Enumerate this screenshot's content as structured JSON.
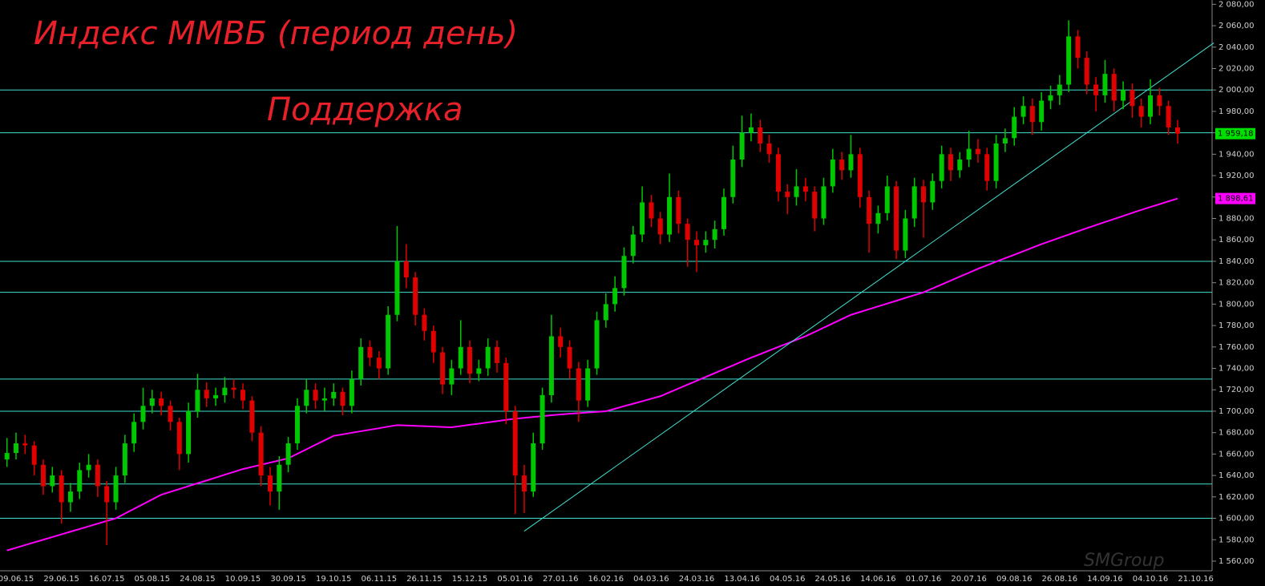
{
  "chart_data": {
    "type": "candlestick",
    "title": "Индекс ММВБ (период день)",
    "annotation": "Поддержка",
    "watermark": "SMGroup",
    "up_color": "#00c800",
    "down_color": "#e00000",
    "ylim": [
      1551,
      2084
    ],
    "yticks": [
      {
        "value": 1560,
        "label": "1 560,00"
      },
      {
        "value": 1580,
        "label": "1 580,00"
      },
      {
        "value": 1600,
        "label": "1 600,00"
      },
      {
        "value": 1620,
        "label": "1 620,00"
      },
      {
        "value": 1640,
        "label": "1 640,00"
      },
      {
        "value": 1660,
        "label": "1 660,00"
      },
      {
        "value": 1680,
        "label": "1 680,00"
      },
      {
        "value": 1700,
        "label": "1 700,00"
      },
      {
        "value": 1720,
        "label": "1 720,00"
      },
      {
        "value": 1740,
        "label": "1 740,00"
      },
      {
        "value": 1760,
        "label": "1 760,00"
      },
      {
        "value": 1780,
        "label": "1 780,00"
      },
      {
        "value": 1800,
        "label": "1 800,00"
      },
      {
        "value": 1820,
        "label": "1 820,00"
      },
      {
        "value": 1840,
        "label": "1 840,00"
      },
      {
        "value": 1860,
        "label": "1 860,00"
      },
      {
        "value": 1880,
        "label": "1 880,00"
      },
      {
        "value": 1900,
        "label": "1 900,00"
      },
      {
        "value": 1920,
        "label": "1 920,00"
      },
      {
        "value": 1940,
        "label": "1 940,00"
      },
      {
        "value": 1960,
        "label": "1 960,00"
      },
      {
        "value": 1980,
        "label": "1 980,00"
      },
      {
        "value": 2000,
        "label": "2 000,00"
      },
      {
        "value": 2020,
        "label": "2 020,00"
      },
      {
        "value": 2040,
        "label": "2 040,00"
      },
      {
        "value": 2060,
        "label": "2 060,00"
      },
      {
        "value": 2080,
        "label": "2 080,00"
      }
    ],
    "categories": [
      null,
      "09.06.15",
      null,
      null,
      null,
      null,
      "29.06.15",
      null,
      null,
      null,
      null,
      "16.07.15",
      null,
      null,
      null,
      null,
      "05.08.15",
      null,
      null,
      null,
      null,
      "24.08.15",
      null,
      null,
      null,
      null,
      "10.09.15",
      null,
      null,
      null,
      null,
      "30.09.15",
      null,
      null,
      null,
      null,
      "19.10.15",
      null,
      null,
      null,
      null,
      "06.11.15",
      null,
      null,
      null,
      null,
      "26.11.15",
      null,
      null,
      null,
      null,
      "15.12.15",
      null,
      null,
      null,
      null,
      "05.01.16",
      null,
      null,
      null,
      null,
      "27.01.16",
      null,
      null,
      null,
      null,
      "16.02.16",
      null,
      null,
      null,
      null,
      "04.03.16",
      null,
      null,
      null,
      null,
      "24.03.16",
      null,
      null,
      null,
      null,
      "13.04.16",
      null,
      null,
      null,
      null,
      "04.05.16",
      null,
      null,
      null,
      null,
      "24.05.16",
      null,
      null,
      null,
      null,
      "14.06.16",
      null,
      null,
      null,
      null,
      "01.07.16",
      null,
      null,
      null,
      null,
      "20.07.16",
      null,
      null,
      null,
      null,
      "09.08.16",
      null,
      null,
      null,
      null,
      "26.08.16",
      null,
      null,
      null,
      null,
      "14.09.16",
      null,
      null,
      null,
      null,
      "04.10.16",
      null,
      null,
      null,
      null,
      "21.10.16",
      null,
      null
    ],
    "open": [
      1655,
      1661,
      1670,
      1668,
      1650,
      1630,
      1640,
      1615,
      1625,
      1645,
      1650,
      1630,
      1615,
      1640,
      1670,
      1690,
      1705,
      1712,
      1705,
      1690,
      1660,
      1700,
      1720,
      1712,
      1715,
      1722,
      1720,
      1710,
      1680,
      1640,
      1625,
      1650,
      1670,
      1705,
      1720,
      1710,
      1712,
      1718,
      1705,
      1730,
      1760,
      1750,
      1740,
      1790,
      1840,
      1825,
      1790,
      1775,
      1755,
      1725,
      1740,
      1760,
      1735,
      1740,
      1760,
      1745,
      1700,
      1640,
      1625,
      1670,
      1715,
      1770,
      1760,
      1740,
      1710,
      1740,
      1785,
      1800,
      1815,
      1845,
      1865,
      1895,
      1880,
      1865,
      1900,
      1875,
      1860,
      1855,
      1860,
      1870,
      1900,
      1935,
      1960,
      1965,
      1950,
      1940,
      1905,
      1900,
      1910,
      1905,
      1880,
      1910,
      1935,
      1925,
      1940,
      1900,
      1875,
      1885,
      1910,
      1850,
      1880,
      1910,
      1895,
      1915,
      1940,
      1925,
      1935,
      1945,
      1940,
      1915,
      1950,
      1955,
      1975,
      1985,
      1970,
      1990,
      1995,
      2005,
      2050,
      2030,
      2005,
      1995,
      2015,
      1990,
      2000,
      1985,
      1975,
      1995,
      1985,
      1965,
      null,
      null,
      null,
      null
    ],
    "high": [
      1675,
      1680,
      1678,
      1672,
      1655,
      1648,
      1645,
      1633,
      1652,
      1660,
      1655,
      1635,
      1648,
      1678,
      1698,
      1722,
      1720,
      1718,
      1710,
      1694,
      1708,
      1735,
      1727,
      1722,
      1732,
      1730,
      1726,
      1714,
      1686,
      1648,
      1658,
      1676,
      1712,
      1730,
      1726,
      1722,
      1726,
      1722,
      1738,
      1768,
      1766,
      1756,
      1798,
      1873,
      1856,
      1830,
      1796,
      1780,
      1760,
      1748,
      1785,
      1766,
      1748,
      1768,
      1766,
      1750,
      1705,
      1650,
      1680,
      1722,
      1790,
      1778,
      1766,
      1746,
      1748,
      1793,
      1810,
      1826,
      1853,
      1873,
      1910,
      1902,
      1886,
      1922,
      1906,
      1880,
      1868,
      1868,
      1878,
      1908,
      1948,
      1976,
      1978,
      1972,
      1958,
      1946,
      1912,
      1926,
      1918,
      1910,
      1918,
      1945,
      1942,
      1958,
      1946,
      1906,
      1892,
      1920,
      1915,
      1888,
      1918,
      1916,
      1922,
      1948,
      1946,
      1942,
      1962,
      1954,
      1946,
      1958,
      1964,
      1984,
      1994,
      1992,
      1998,
      2004,
      2014,
      2065,
      2056,
      2036,
      2012,
      2028,
      2020,
      2008,
      2006,
      1992,
      2010,
      2002,
      1990,
      1972,
      null,
      null,
      null,
      null
    ],
    "low": [
      1648,
      1655,
      1660,
      1640,
      1622,
      1624,
      1595,
      1606,
      1618,
      1638,
      1620,
      1575,
      1608,
      1633,
      1662,
      1683,
      1698,
      1696,
      1682,
      1645,
      1652,
      1694,
      1704,
      1705,
      1708,
      1712,
      1702,
      1672,
      1630,
      1612,
      1608,
      1643,
      1664,
      1698,
      1702,
      1700,
      1705,
      1696,
      1698,
      1724,
      1742,
      1730,
      1734,
      1784,
      1815,
      1780,
      1766,
      1745,
      1716,
      1715,
      1734,
      1726,
      1728,
      1733,
      1736,
      1688,
      1604,
      1605,
      1620,
      1664,
      1708,
      1750,
      1730,
      1690,
      1704,
      1734,
      1778,
      1793,
      1808,
      1838,
      1858,
      1872,
      1856,
      1858,
      1866,
      1835,
      1830,
      1848,
      1852,
      1864,
      1894,
      1928,
      1952,
      1942,
      1932,
      1896,
      1884,
      1892,
      1896,
      1868,
      1874,
      1904,
      1916,
      1918,
      1890,
      1848,
      1866,
      1878,
      1842,
      1843,
      1872,
      1862,
      1888,
      1908,
      1915,
      1918,
      1928,
      1932,
      1906,
      1908,
      1942,
      1948,
      1968,
      1958,
      1962,
      1982,
      1986,
      1998,
      2020,
      1996,
      1980,
      1988,
      1980,
      1982,
      1974,
      1965,
      1968,
      1976,
      1958,
      1950,
      null,
      null,
      null,
      null
    ],
    "close": [
      1661,
      1670,
      1668,
      1650,
      1630,
      1640,
      1615,
      1625,
      1645,
      1650,
      1630,
      1615,
      1640,
      1670,
      1690,
      1705,
      1712,
      1705,
      1690,
      1660,
      1700,
      1720,
      1712,
      1715,
      1722,
      1720,
      1710,
      1680,
      1640,
      1625,
      1650,
      1670,
      1705,
      1720,
      1710,
      1712,
      1718,
      1705,
      1730,
      1760,
      1750,
      1740,
      1790,
      1840,
      1825,
      1790,
      1775,
      1755,
      1725,
      1740,
      1760,
      1735,
      1740,
      1760,
      1745,
      1700,
      1640,
      1625,
      1670,
      1715,
      1770,
      1760,
      1740,
      1710,
      1740,
      1785,
      1800,
      1815,
      1845,
      1865,
      1895,
      1880,
      1865,
      1900,
      1875,
      1860,
      1855,
      1860,
      1870,
      1900,
      1935,
      1960,
      1965,
      1950,
      1940,
      1905,
      1900,
      1910,
      1905,
      1880,
      1910,
      1935,
      1925,
      1940,
      1900,
      1875,
      1885,
      1910,
      1850,
      1880,
      1910,
      1895,
      1915,
      1940,
      1925,
      1935,
      1945,
      1940,
      1915,
      1950,
      1955,
      1975,
      1985,
      1970,
      1990,
      1995,
      2005,
      2050,
      2030,
      2005,
      1995,
      2015,
      1990,
      2000,
      1985,
      1975,
      1995,
      1985,
      1965,
      1959.18,
      null,
      null,
      null,
      null
    ],
    "ma": {
      "color": "#ff00ff",
      "values": [
        1570,
        1572.5,
        1575,
        1577.5,
        1580,
        1582.5,
        1585,
        1587.5,
        1590,
        1592.5,
        1595,
        1597.5,
        1600,
        1604.4,
        1608.8,
        1613.2,
        1617.6,
        1622,
        1624.7,
        1627.3,
        1630,
        1632.7,
        1635.3,
        1638,
        1640.7,
        1643.3,
        1646,
        1648,
        1650,
        1652,
        1654,
        1656,
        1660.2,
        1664.4,
        1668.6,
        1672.8,
        1677,
        1678.4,
        1679.9,
        1681.3,
        1682.7,
        1684.1,
        1685.6,
        1687,
        1686.7,
        1686.3,
        1686,
        1685.7,
        1685.3,
        1685,
        1686.1,
        1687.3,
        1688.4,
        1689.6,
        1690.7,
        1691.9,
        1693,
        1693.8,
        1694.6,
        1695.4,
        1696.2,
        1697,
        1697.6,
        1698.2,
        1698.8,
        1699.4,
        1700,
        1702.3,
        1704.7,
        1707,
        1709.3,
        1711.7,
        1714,
        1717.6,
        1721.2,
        1724.8,
        1728.4,
        1732,
        1735.6,
        1739.2,
        1742.8,
        1746.4,
        1750,
        1753.3,
        1756.7,
        1760,
        1763.3,
        1766.7,
        1770,
        1774,
        1778,
        1782,
        1786,
        1790,
        1792.6,
        1795.3,
        1797.9,
        1800.5,
        1803.1,
        1805.8,
        1808.4,
        1811,
        1814.7,
        1818.3,
        1822,
        1825.7,
        1829.3,
        1833,
        1836.3,
        1839.6,
        1842.9,
        1846.1,
        1849.4,
        1852.7,
        1856,
        1859,
        1862,
        1865,
        1868,
        1871,
        1873.8,
        1876.7,
        1879.5,
        1882.3,
        1885.2,
        1888,
        1890.7,
        1893.3,
        1896,
        1898.61,
        null,
        null,
        null,
        null
      ]
    },
    "levels": {
      "color": "#40e0d0",
      "values": [
        2000,
        1960,
        1840,
        1811,
        1730,
        1700,
        1632,
        1600
      ]
    },
    "trendline": {
      "color": "#40e0d0",
      "x": [
        57,
        133
      ],
      "values": [
        1588,
        2044
      ]
    },
    "price_labels": [
      {
        "value": 1959.18,
        "label": "1 959,18",
        "color": "#00e000"
      },
      {
        "value": 1898.61,
        "label": "1 898,61",
        "color": "#ff00ff"
      }
    ]
  }
}
